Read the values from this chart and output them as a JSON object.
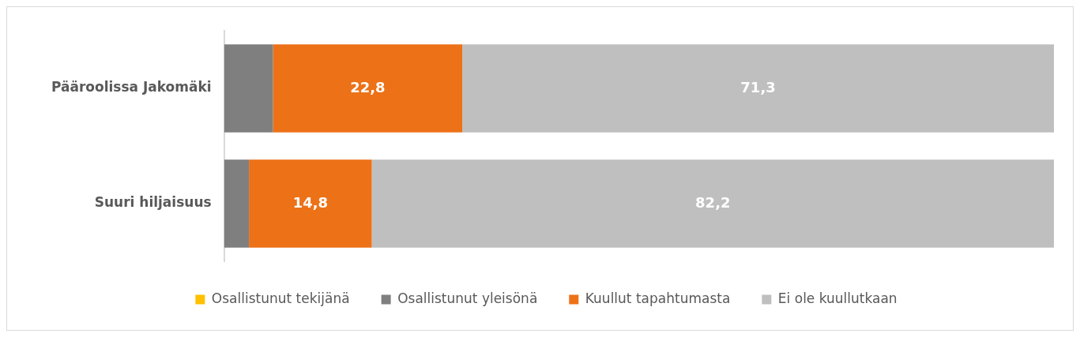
{
  "chart_data": {
    "type": "bar",
    "orientation": "horizontal",
    "stacked": true,
    "categories": [
      "Pääroolissa Jakomäki",
      "Suuri hiljaisuus"
    ],
    "series": [
      {
        "name": "Osallistunut tekijänä",
        "color": "#ffc000",
        "values": [
          null,
          null
        ]
      },
      {
        "name": "Osallistunut yleisönä",
        "color": "#7f7f7f",
        "values": [
          5.9,
          3.0
        ]
      },
      {
        "name": "Kuullut tapahtumasta",
        "color": "#ed7117",
        "values": [
          22.8,
          14.8
        ],
        "value_labels": [
          "22,8",
          "14,8"
        ]
      },
      {
        "name": "Ei ole kuullutkaan",
        "color": "#bfbfbf",
        "values": [
          71.3,
          82.2
        ],
        "value_labels": [
          "71,3",
          "82,2"
        ]
      }
    ],
    "xlim": [
      0,
      100
    ],
    "tick_labels": "y",
    "grid": false,
    "legend": "bottom"
  }
}
